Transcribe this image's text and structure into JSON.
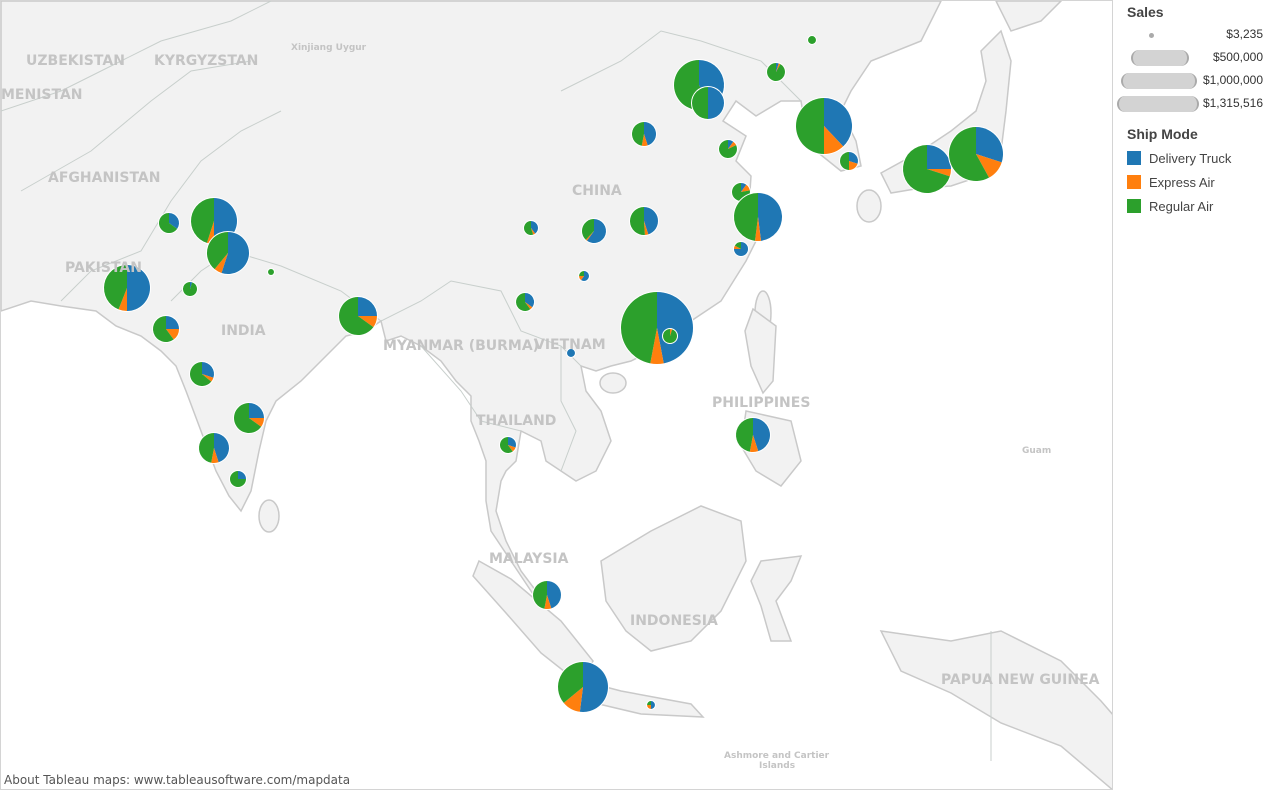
{
  "map": {
    "labels": [
      "UZBEKISTAN",
      "KYRGYZSTAN",
      "Xinjiang Uygur",
      "MENISTAN",
      "AFGHANISTAN",
      "PAKISTAN",
      "INDIA",
      "CHINA",
      "MYANMAR (BURMA)",
      "VIETNAM",
      "THAILAND",
      "PHILIPPINES",
      "MALAYSIA",
      "INDONESIA",
      "PAPUA NEW GUINEA",
      "Guam",
      "Ashmore and Cartier",
      "Islands"
    ],
    "credit": "About Tableau maps: www.tableausoftware.com/mapdata"
  },
  "colors": {
    "Delivery Truck": "#1f77b4",
    "Express Air": "#ff7f0e",
    "Regular Air": "#2ca02c",
    "land": "#f2f2f2",
    "sea": "#ffffff"
  },
  "legend": {
    "sales_title": "Sales",
    "sales_sizes": [
      "$3,235",
      "$500,000",
      "$1,000,000",
      "$1,315,516"
    ],
    "ship_title": "Ship Mode",
    "ship_modes": [
      "Delivery Truck",
      "Express Air",
      "Regular Air"
    ]
  },
  "chart_data": {
    "type": "pie-map",
    "size_measure": "Sales",
    "color_measure": "Ship Mode",
    "size_range": [
      3235,
      1315516
    ],
    "pies": [
      {
        "sales": 16000,
        "shares": [
          0,
          0,
          1
        ]
      },
      {
        "sales": 82000,
        "shares": [
          0.05,
          0.03,
          0.92
        ]
      },
      {
        "sales": 634000,
        "shares": [
          0.42,
          0,
          0.58
        ]
      },
      {
        "sales": 260000,
        "shares": [
          0.5,
          0,
          0.5
        ]
      },
      {
        "sales": 146000,
        "shares": [
          0.45,
          0.08,
          0.47
        ]
      },
      {
        "sales": 82000,
        "shares": [
          0.1,
          0.08,
          0.82
        ]
      },
      {
        "sales": 796000,
        "shares": [
          0.38,
          0.12,
          0.5
        ]
      },
      {
        "sales": 82000,
        "shares": [
          0.3,
          0.2,
          0.5
        ]
      },
      {
        "sales": 585000,
        "shares": [
          0.25,
          0.05,
          0.7
        ]
      },
      {
        "sales": 740000,
        "shares": [
          0.3,
          0.12,
          0.58
        ]
      },
      {
        "sales": 82000,
        "shares": [
          0.1,
          0.12,
          0.78
        ]
      },
      {
        "sales": 585000,
        "shares": [
          0.48,
          0.04,
          0.48
        ]
      },
      {
        "sales": 50000,
        "shares": [
          0.75,
          0.08,
          0.17
        ]
      },
      {
        "sales": 199000,
        "shares": [
          0.45,
          0.04,
          0.51
        ]
      },
      {
        "sales": 146000,
        "shares": [
          0.6,
          0.02,
          0.38
        ]
      },
      {
        "sales": 50000,
        "shares": [
          0.4,
          0.05,
          0.55
        ]
      },
      {
        "sales": 25000,
        "shares": [
          0.6,
          0.15,
          0.25
        ]
      },
      {
        "sales": 82000,
        "shares": [
          0.35,
          0.05,
          0.6
        ]
      },
      {
        "sales": 1315516,
        "shares": [
          0.47,
          0.06,
          0.47
        ]
      },
      {
        "sales": 50000,
        "shares": [
          0,
          0.05,
          0.95
        ]
      },
      {
        "sales": 16000,
        "shares": [
          1,
          0,
          0
        ]
      },
      {
        "sales": 65000,
        "shares": [
          0.3,
          0.1,
          0.6
        ]
      },
      {
        "sales": 293000,
        "shares": [
          0.45,
          0.08,
          0.47
        ]
      },
      {
        "sales": 199000,
        "shares": [
          0.45,
          0.08,
          0.47
        ]
      },
      {
        "sales": 634000,
        "shares": [
          0.52,
          0.12,
          0.36
        ]
      },
      {
        "sales": 16000,
        "shares": [
          0.5,
          0.25,
          0.25
        ]
      },
      {
        "sales": 102000,
        "shares": [
          0.35,
          0,
          0.65
        ]
      },
      {
        "sales": 537000,
        "shares": [
          0.5,
          0.05,
          0.45
        ]
      },
      {
        "sales": 448000,
        "shares": [
          0.55,
          0.06,
          0.39
        ]
      },
      {
        "sales": 9000,
        "shares": [
          0,
          0,
          1
        ]
      },
      {
        "sales": 537000,
        "shares": [
          0.5,
          0.06,
          0.44
        ]
      },
      {
        "sales": 50000,
        "shares": [
          0.05,
          0,
          0.95
        ]
      },
      {
        "sales": 172000,
        "shares": [
          0.25,
          0.15,
          0.6
        ]
      },
      {
        "sales": 366000,
        "shares": [
          0.25,
          0.1,
          0.65
        ]
      },
      {
        "sales": 146000,
        "shares": [
          0.3,
          0.06,
          0.64
        ]
      },
      {
        "sales": 228000,
        "shares": [
          0.25,
          0.1,
          0.65
        ]
      },
      {
        "sales": 228000,
        "shares": [
          0.45,
          0.08,
          0.47
        ]
      },
      {
        "sales": 65000,
        "shares": [
          0.25,
          0,
          0.75
        ]
      }
    ]
  }
}
